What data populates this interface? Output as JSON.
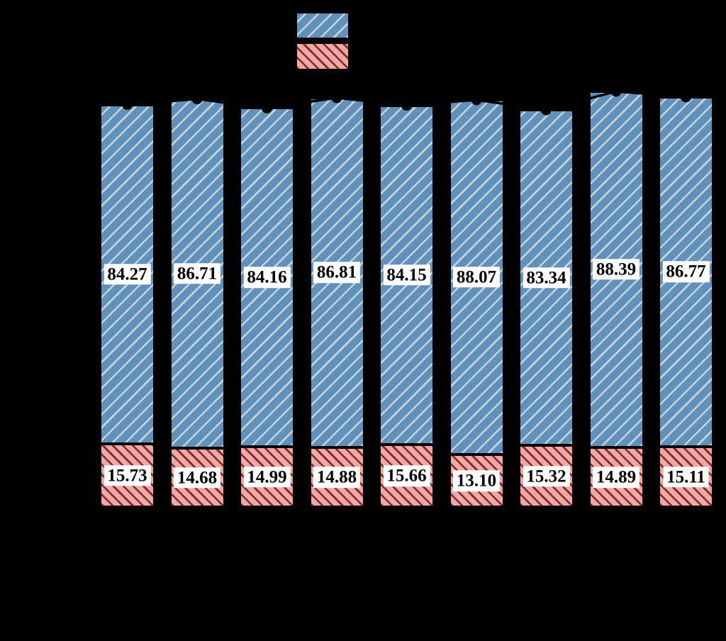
{
  "figure": {
    "background": "#000000",
    "note": "axis/legend/title text rendered black on black background (not visible)"
  },
  "colors": {
    "background": "#000000",
    "blue_fill": "#5e92bd",
    "blue_hatch": "#ccd2d4",
    "pink_fill": "#ecaaa4",
    "pink_hatch": "#8b222b",
    "bar_edge": "#000000",
    "totals_line": "#000000",
    "label_bg": "#ffffff",
    "label_text": "#000000"
  },
  "legend": {
    "position": "top-center",
    "items": [
      {
        "id": "blue-hatched",
        "hatch": "/",
        "fill": "#5e92bd",
        "hatch_color": "#ccd2d4"
      },
      {
        "id": "pink-hatched",
        "hatch": "\\",
        "fill": "#ecaaa4",
        "hatch_color": "#8b222b"
      }
    ]
  },
  "chart_data": {
    "type": "bar",
    "stacked": true,
    "orientation": "vertical",
    "n_bars": 9,
    "categories": [
      "",
      "",
      "",
      "",
      "",
      "",
      "",
      "",
      ""
    ],
    "series": [
      {
        "id": "blue-hatched",
        "hatch": "/",
        "stack_order": "top",
        "values": [
          84.27,
          86.71,
          84.16,
          86.81,
          84.15,
          88.07,
          83.34,
          88.39,
          86.77
        ],
        "labels": [
          "84.27",
          "86.71",
          "84.16",
          "86.81",
          "84.15",
          "88.07",
          "83.34",
          "88.39",
          "86.77"
        ]
      },
      {
        "id": "pink-hatched",
        "hatch": "\\",
        "stack_order": "bottom",
        "values": [
          15.73,
          14.68,
          14.99,
          14.88,
          15.66,
          13.1,
          15.32,
          14.89,
          15.11
        ],
        "labels": [
          "15.73",
          "14.68",
          "14.99",
          "14.88",
          "15.66",
          "13.10",
          "15.32",
          "14.89",
          "15.11"
        ]
      }
    ],
    "totals": [
      100.0,
      101.39,
      99.15,
      101.69,
      99.81,
      101.17,
      98.66,
      103.28,
      101.88
    ],
    "totals_overlay": {
      "style": "line-with-circle-markers",
      "color": "#000000"
    },
    "value_labels": {
      "visible": true,
      "background": "#ffffff",
      "text_color": "#000000"
    },
    "axis_text_visible": false,
    "ylim_inferred": [
      0,
      105
    ],
    "grid": false
  }
}
